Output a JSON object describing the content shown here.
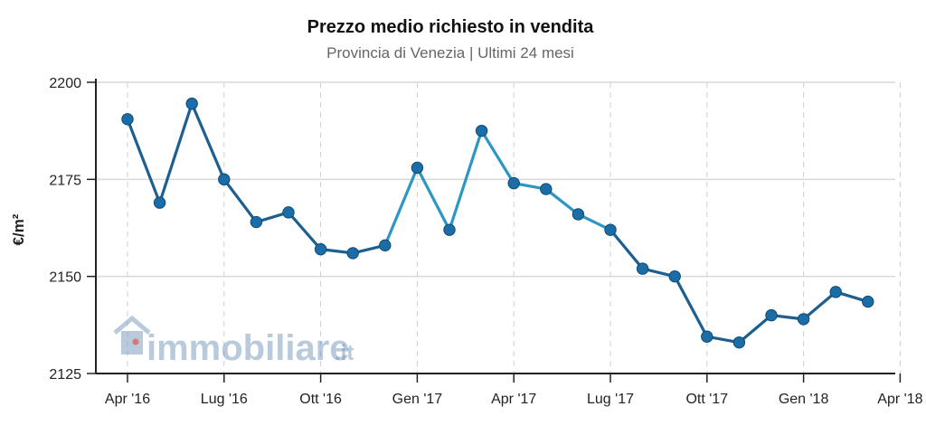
{
  "chart_data": {
    "type": "line",
    "title": "Prezzo medio richiesto in vendita",
    "subtitle": "Provincia di Venezia | Ultimi 24 mesi",
    "ylabel": "€/m²",
    "xlabel": "",
    "ylim": [
      2125,
      2200
    ],
    "yticks": [
      2125,
      2150,
      2175,
      2200
    ],
    "xticks": [
      {
        "index": 0,
        "label": "Apr '16"
      },
      {
        "index": 3,
        "label": "Lug '16"
      },
      {
        "index": 6,
        "label": "Ott '16"
      },
      {
        "index": 9,
        "label": "Gen '17"
      },
      {
        "index": 12,
        "label": "Apr '17"
      },
      {
        "index": 15,
        "label": "Lug '17"
      },
      {
        "index": 18,
        "label": "Ott '17"
      },
      {
        "index": 21,
        "label": "Gen '18"
      },
      {
        "index": 24,
        "label": "Apr '18"
      }
    ],
    "grid": true,
    "legend": "none",
    "colors": {
      "line_dark": "#1d5f8f",
      "line_light": "#2d96c4",
      "marker": "#1a6da6"
    },
    "series": [
      {
        "name": "Prezzo medio richiesto in vendita",
        "values": [
          2190.5,
          2169,
          2194.5,
          2175,
          2164,
          2166.5,
          2157,
          2156,
          2158,
          2178,
          2162,
          2187.5,
          2174,
          2172.5,
          2166,
          2162,
          2152,
          2150,
          2134.5,
          2133,
          2140,
          2139,
          2146,
          2143.5
        ]
      }
    ]
  },
  "watermark": {
    "brand": "immobiliare",
    "suffix": ".it"
  }
}
